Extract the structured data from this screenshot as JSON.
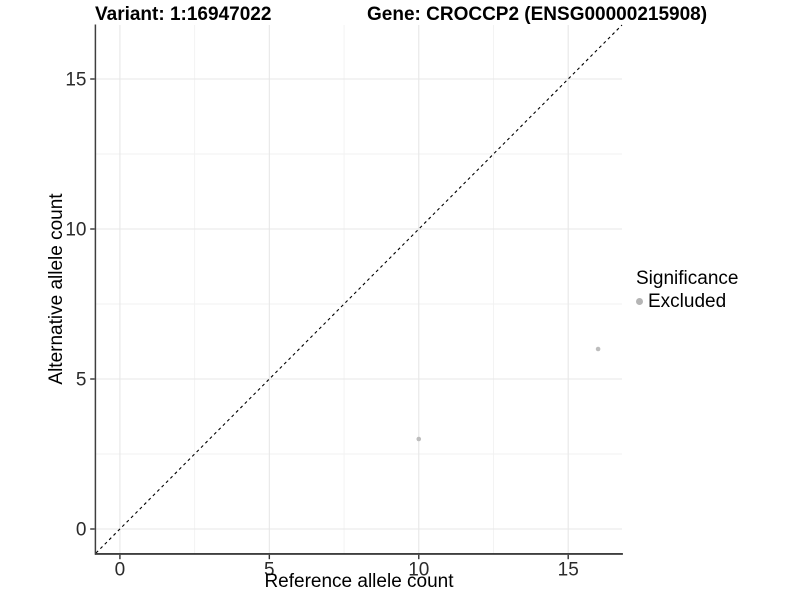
{
  "colors": {
    "background": "#ffffff",
    "grid_major": "#e7e7e7",
    "grid_minor": "#f2f2f2",
    "axis_line": "#3f3f3f",
    "tick_mark": "#333333",
    "tick_label": "#2b2b2b",
    "point": "#bdbdbd",
    "identity_line": "#000000"
  },
  "chart_data": {
    "type": "scatter",
    "title_variant": "Variant: 1:16947022",
    "title_gene": "Gene: CROCCP2 (ENSG00000215908)",
    "xlabel": "Reference allele count",
    "ylabel": "Alternative allele count",
    "xlim": [
      -0.8,
      16.8
    ],
    "ylim": [
      -0.8,
      16.8
    ],
    "x_major_ticks": [
      0,
      5,
      10,
      15
    ],
    "y_major_ticks": [
      0,
      5,
      10,
      15
    ],
    "x_minor_ticks": [
      2.5,
      7.5,
      12.5
    ],
    "y_minor_ticks": [
      2.5,
      7.5,
      12.5
    ],
    "grid": "major and minor gridlines, white panel",
    "reference_line": {
      "type": "identity y=x",
      "style": "dashed",
      "color": "#000000"
    },
    "series": [
      {
        "name": "Excluded",
        "color": "#bdbdbd",
        "marker": "circle",
        "points": [
          [
            10,
            3
          ],
          [
            16,
            6
          ]
        ]
      }
    ],
    "legend": {
      "title": "Significance",
      "position": "right",
      "items": [
        {
          "label": "Excluded",
          "color": "#b5b5b5",
          "marker": "circle"
        }
      ]
    }
  }
}
